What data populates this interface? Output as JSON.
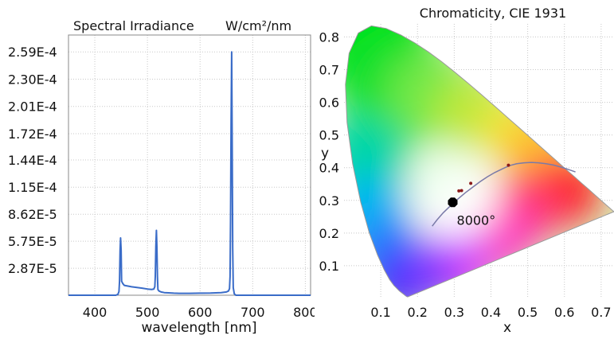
{
  "chart_data": [
    {
      "type": "line",
      "title": "Spectral Irradiance",
      "title_unit": "W/cm²/nm",
      "xlabel": "wavelength [nm]",
      "ylabel": "",
      "xlim": [
        350,
        810
      ],
      "ylim": [
        0,
        0.000277
      ],
      "x_ticks": [
        400,
        500,
        600,
        700,
        800
      ],
      "x_tick_labels": [
        "400",
        "500",
        "600",
        "700",
        "800"
      ],
      "y_ticks": [
        2.87e-05,
        5.75e-05,
        8.62e-05,
        0.000115,
        0.000144,
        0.000172,
        0.000201,
        0.00023,
        0.000259
      ],
      "y_tick_labels": [
        "2.87E-5",
        "5.75E-5",
        "8.62E-5",
        "1.15E-4",
        "1.44E-4",
        "1.72E-4",
        "2.01E-4",
        "2.30E-4",
        "2.59E-4"
      ],
      "grid": true,
      "series_color": "#3a6cc8",
      "series": [
        {
          "name": "",
          "x": [
            350,
            440,
            444,
            446,
            447,
            448,
            449,
            450,
            451,
            453,
            456,
            462,
            470,
            480,
            490,
            500,
            508,
            512,
            514,
            515,
            516,
            517,
            518,
            519,
            520,
            522,
            526,
            532,
            540,
            550,
            560,
            580,
            600,
            620,
            640,
            650,
            654,
            656,
            657,
            658,
            659,
            660,
            661,
            662,
            663,
            665,
            668,
            675,
            700,
            750,
            810
          ],
          "y": [
            0,
            0,
            1e-06,
            4e-06,
            1.5e-05,
            4.8e-05,
            6.1e-05,
            4.8e-05,
            1.5e-05,
            1.25e-05,
            1.05e-05,
            9.8e-06,
            9e-06,
            8.2e-06,
            7.5e-06,
            6.6e-06,
            6.2e-06,
            6.5e-06,
            9e-06,
            2e-05,
            5.2e-05,
            6.9e-05,
            5.2e-05,
            2e-05,
            6e-06,
            4.5e-06,
            3.5e-06,
            2.8e-06,
            2.5e-06,
            2.2e-06,
            2e-06,
            2e-06,
            2.2e-06,
            2.4e-06,
            2.8e-06,
            3.5e-06,
            4.5e-06,
            7e-06,
            2e-05,
            8e-05,
            0.000185,
            0.000259,
            0.00017,
            5e-05,
            8e-06,
            1.5e-06,
            0,
            0,
            0,
            0,
            0
          ]
        }
      ]
    },
    {
      "type": "scatter",
      "title": "Chromaticity, CIE 1931",
      "xlabel": "x",
      "ylabel": "y",
      "xlim": [
        0,
        0.735
      ],
      "ylim": [
        0,
        0.84
      ],
      "x_ticks": [
        0.1,
        0.2,
        0.3,
        0.4,
        0.5,
        0.6,
        0.7
      ],
      "x_tick_labels": [
        "0.1",
        "0.2",
        "0.3",
        "0.4",
        "0.5",
        "0.6",
        "0.7"
      ],
      "y_ticks": [
        0.1,
        0.2,
        0.3,
        0.4,
        0.5,
        0.6,
        0.7,
        0.8
      ],
      "y_tick_labels": [
        "0.1",
        "0.2",
        "0.3",
        "0.4",
        "0.5",
        "0.6",
        "0.7",
        "0.8"
      ],
      "grid": true,
      "spectral_locus": {
        "x": [
          0.1741,
          0.174,
          0.1738,
          0.1733,
          0.1721,
          0.1703,
          0.1669,
          0.1611,
          0.151,
          0.1355,
          0.1241,
          0.1096,
          0.0913,
          0.0687,
          0.0454,
          0.0235,
          0.0082,
          0.0039,
          0.0139,
          0.0389,
          0.0743,
          0.1142,
          0.1547,
          0.1929,
          0.2296,
          0.2658,
          0.3016,
          0.3373,
          0.3731,
          0.4087,
          0.4441,
          0.4788,
          0.5125,
          0.5448,
          0.5752,
          0.6029,
          0.627,
          0.6482,
          0.6658,
          0.6801,
          0.6915,
          0.7006,
          0.7079,
          0.714,
          0.719,
          0.723,
          0.726,
          0.7283,
          0.73,
          0.7311,
          0.732,
          0.7347
        ],
        "y": [
          0.005,
          0.005,
          0.0049,
          0.0048,
          0.0048,
          0.0058,
          0.0086,
          0.0138,
          0.0227,
          0.0399,
          0.0578,
          0.0868,
          0.1327,
          0.2007,
          0.295,
          0.4127,
          0.5384,
          0.6548,
          0.7502,
          0.812,
          0.8338,
          0.8262,
          0.8059,
          0.7816,
          0.7543,
          0.7243,
          0.6923,
          0.6589,
          0.6245,
          0.5896,
          0.5547,
          0.5202,
          0.4866,
          0.4544,
          0.4242,
          0.3965,
          0.3725,
          0.3514,
          0.334,
          0.3197,
          0.3083,
          0.2993,
          0.292,
          0.2859,
          0.2809,
          0.277,
          0.274,
          0.2717,
          0.27,
          0.2689,
          0.268,
          0.2653
        ]
      },
      "planckian_locus": {
        "x": [
          0.24,
          0.253,
          0.27,
          0.29,
          0.31,
          0.33,
          0.35,
          0.37,
          0.39,
          0.41,
          0.43,
          0.45,
          0.47,
          0.49,
          0.51,
          0.53,
          0.55,
          0.57,
          0.59,
          0.61,
          0.63
        ],
        "y": [
          0.221,
          0.24,
          0.262,
          0.284,
          0.304,
          0.323,
          0.34,
          0.357,
          0.372,
          0.385,
          0.396,
          0.406,
          0.412,
          0.415,
          0.416,
          0.415,
          0.412,
          0.408,
          0.402,
          0.395,
          0.387
        ]
      },
      "reference_points": [
        {
          "x": 0.3127,
          "y": 0.3291
        },
        {
          "x": 0.32,
          "y": 0.33
        },
        {
          "x": 0.345,
          "y": 0.352
        },
        {
          "x": 0.4476,
          "y": 0.4074
        }
      ],
      "measured_point": {
        "x": 0.296,
        "y": 0.294
      },
      "cct_label": "8000°",
      "locus_color": "#7a7aa8",
      "ref_point_color": "#8b1a1a",
      "measured_color": "#000000"
    }
  ]
}
